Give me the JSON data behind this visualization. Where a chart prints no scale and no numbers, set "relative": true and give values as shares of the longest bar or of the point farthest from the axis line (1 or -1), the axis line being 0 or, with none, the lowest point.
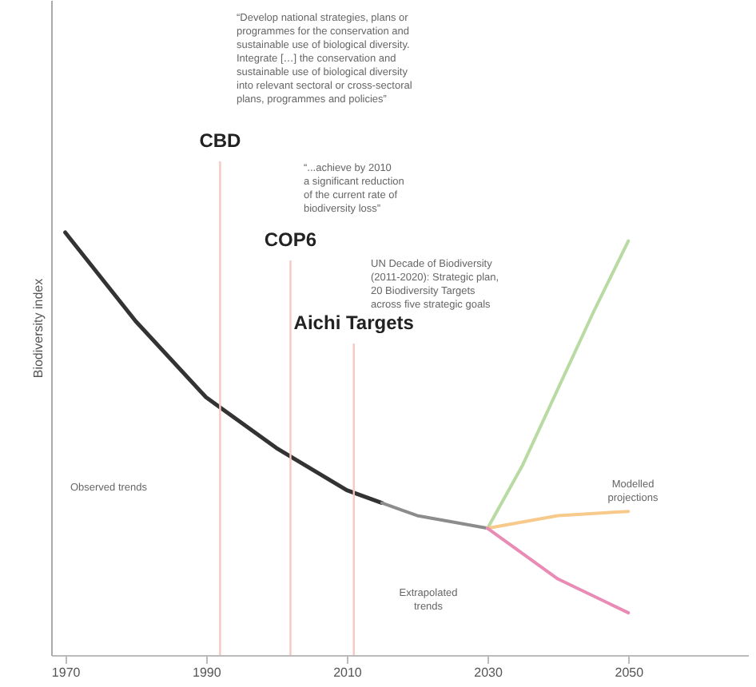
{
  "chart_data": {
    "type": "line",
    "ylabel": "Biodiversity index",
    "relative": true,
    "xlim": [
      1968,
      2067
    ],
    "xticks": [
      1970,
      1990,
      2010,
      2030,
      2050
    ],
    "series": [
      {
        "color": "#333333",
        "x": [
          1970,
          1980,
          1990,
          2000,
          2010,
          2015
        ],
        "values": [
          1.0,
          0.79,
          0.61,
          0.49,
          0.39,
          0.36
        ]
      },
      {
        "color": "#8c8c8c",
        "x": [
          2015,
          2020,
          2030
        ],
        "values": [
          0.36,
          0.33,
          0.3
        ]
      },
      {
        "color": "#b9dba3",
        "x": [
          2030,
          2035,
          2040,
          2045,
          2050
        ],
        "values": [
          0.3,
          0.45,
          0.63,
          0.81,
          0.98
        ]
      },
      {
        "color": "#f7c98a",
        "x": [
          2030,
          2040,
          2050
        ],
        "values": [
          0.3,
          0.33,
          0.34
        ]
      },
      {
        "color": "#e98bb5",
        "x": [
          2030,
          2040,
          2050
        ],
        "values": [
          0.3,
          0.18,
          0.1
        ]
      }
    ],
    "ref_lines": [
      {
        "axis": "x",
        "value": 1992,
        "label": "CBD",
        "color": "#f3c9c2"
      },
      {
        "axis": "x",
        "value": 2002,
        "label": "COP6",
        "color": "#f3c9c2"
      },
      {
        "axis": "x",
        "value": 2011,
        "label": "Aichi Targets",
        "color": "#f3c9c2"
      }
    ],
    "annotations": [
      "“Develop national strategies, plans or\nprogrammes for the conservation and\nsustainable use of biological diversity.\nIntegrate […] the conservation and\nsustainable use of biological diversity\ninto relevant sectoral or cross-sectoral\nplans, programmes and policies”",
      "“...achieve by 2010\na significant reduction\nof the current rate of\nbiodiversity loss”",
      "UN Decade of Biodiversity\n(2011-2020): Strategic plan,\n20 Biodiversity Targets\nacross five strategic goals",
      "Observed trends",
      "Extrapolated\ntrends",
      "Modelled\nprojections"
    ],
    "grid": false,
    "marker": "none",
    "line_style": "solid"
  }
}
